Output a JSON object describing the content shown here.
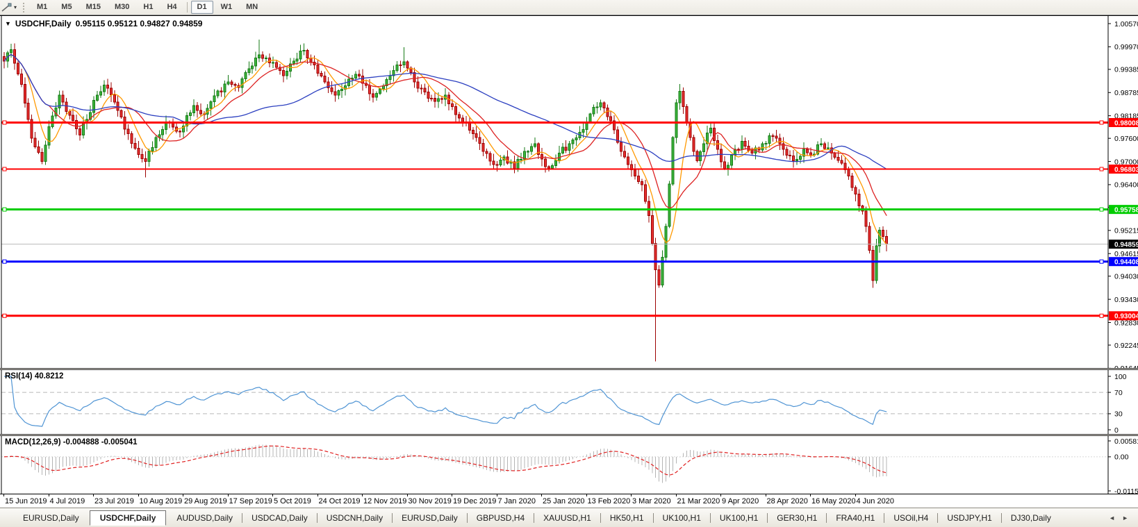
{
  "toolbar": {
    "tool_icon": "draw-line-tool",
    "dropdown_caret": "▾",
    "timeframes": [
      "M1",
      "M5",
      "M15",
      "M30",
      "H1",
      "H4",
      "D1",
      "W1",
      "MN"
    ],
    "active_timeframe": "D1"
  },
  "chart_header": {
    "collapse_icon": "▼",
    "symbol": "USDCHF,Daily",
    "ohlc": "0.95115 0.95121 0.94827 0.94859"
  },
  "price_axis": {
    "ticks": [
      "1.00570",
      "0.99970",
      "0.99385",
      "0.98785",
      "0.98185",
      "0.97600",
      "0.97000",
      "0.96400",
      "0.95815",
      "0.95215",
      "0.94615",
      "0.94030",
      "0.93430",
      "0.92830",
      "0.92245",
      "0.91645"
    ]
  },
  "hlines": [
    {
      "price": 0.98008,
      "label": "0.98008",
      "color": "#ff0000",
      "thickness": 3
    },
    {
      "price": 0.96803,
      "label": "0.96803",
      "color": "#ff0000",
      "thickness": 2
    },
    {
      "price": 0.95758,
      "label": "0.95758",
      "color": "#00cc00",
      "thickness": 3
    },
    {
      "price": 0.94408,
      "label": "0.94408",
      "color": "#0000ff",
      "thickness": 3
    },
    {
      "price": 0.93004,
      "label": "0.93004",
      "color": "#ff0000",
      "thickness": 3
    }
  ],
  "current_price": {
    "price": 0.94859,
    "label": "0.94859",
    "line_color": "#b8b8b8",
    "tag_bg": "#000000"
  },
  "colors": {
    "bull_fill": "#3db53d",
    "bull_border": "#157a15",
    "bear_fill": "#e63030",
    "bear_border": "#9c0000",
    "ma_fast": "#ff9900",
    "ma_mid": "#dd2222",
    "ma_slow": "#2b3fc0",
    "rsi_line": "#4f94d4",
    "rsi_level": "#b8b8b8",
    "macd_hist": "#b4b4b4",
    "macd_signal": "#e02020"
  },
  "chart_data": {
    "type": "candlestick",
    "symbol": "USDCHF",
    "timeframe": "Daily",
    "x_ticks": [
      "15 Jun 2019",
      "4 Jul 2019",
      "23 Jul 2019",
      "10 Aug 2019",
      "29 Aug 2019",
      "17 Sep 2019",
      "5 Oct 2019",
      "24 Oct 2019",
      "12 Nov 2019",
      "30 Nov 2019",
      "19 Dec 2019",
      "7 Jan 2020",
      "25 Jan 2020",
      "13 Feb 2020",
      "3 Mar 2020",
      "21 Mar 2020",
      "9 Apr 2020",
      "28 Apr 2020",
      "16 May 2020",
      "4 Jun 2020"
    ],
    "days_per_tick": 13,
    "num_candles": 257,
    "y_axis_top": 1.00768,
    "y_axis_bottom": 0.91634,
    "close_anchors": [
      [
        0,
        0.996
      ],
      [
        2,
        0.999
      ],
      [
        5,
        0.99
      ],
      [
        8,
        0.976
      ],
      [
        11,
        0.97
      ],
      [
        13,
        0.979
      ],
      [
        16,
        0.9872
      ],
      [
        19,
        0.982
      ],
      [
        22,
        0.9768
      ],
      [
        26,
        0.9858
      ],
      [
        29,
        0.9898
      ],
      [
        33,
        0.9832
      ],
      [
        36,
        0.9772
      ],
      [
        39,
        0.9718
      ],
      [
        41,
        0.97
      ],
      [
        44,
        0.9762
      ],
      [
        47,
        0.9802
      ],
      [
        50,
        0.9778
      ],
      [
        52,
        0.9792
      ],
      [
        55,
        0.9845
      ],
      [
        58,
        0.9822
      ],
      [
        61,
        0.987
      ],
      [
        65,
        0.9906
      ],
      [
        68,
        0.9892
      ],
      [
        71,
        0.994
      ],
      [
        74,
        0.9976
      ],
      [
        78,
        0.9956
      ],
      [
        81,
        0.9922
      ],
      [
        84,
        0.996
      ],
      [
        87,
        0.9988
      ],
      [
        90,
        0.995
      ],
      [
        93,
        0.9906
      ],
      [
        96,
        0.9872
      ],
      [
        99,
        0.9896
      ],
      [
        102,
        0.9926
      ],
      [
        104,
        0.9902
      ],
      [
        107,
        0.9866
      ],
      [
        110,
        0.9896
      ],
      [
        113,
        0.9936
      ],
      [
        116,
        0.9958
      ],
      [
        119,
        0.9906
      ],
      [
        122,
        0.988
      ],
      [
        125,
        0.9856
      ],
      [
        128,
        0.9872
      ],
      [
        130,
        0.9842
      ],
      [
        133,
        0.9802
      ],
      [
        136,
        0.9772
      ],
      [
        139,
        0.9726
      ],
      [
        142,
        0.9692
      ],
      [
        145,
        0.9712
      ],
      [
        148,
        0.9682
      ],
      [
        151,
        0.9726
      ],
      [
        154,
        0.9746
      ],
      [
        156,
        0.9706
      ],
      [
        158,
        0.9682
      ],
      [
        161,
        0.9722
      ],
      [
        164,
        0.9746
      ],
      [
        167,
        0.9776
      ],
      [
        169,
        0.9802
      ],
      [
        171,
        0.984
      ],
      [
        173,
        0.9852
      ],
      [
        175,
        0.9816
      ],
      [
        177,
        0.9782
      ],
      [
        179,
        0.9726
      ],
      [
        181,
        0.9692
      ],
      [
        183,
        0.9662
      ],
      [
        185,
        0.964
      ],
      [
        187,
        0.956
      ],
      [
        189,
        0.942
      ],
      [
        190,
        0.938
      ],
      [
        191,
        0.9452
      ],
      [
        192,
        0.9532
      ],
      [
        193,
        0.9642
      ],
      [
        194,
        0.9762
      ],
      [
        195,
        0.9852
      ],
      [
        196,
        0.9882
      ],
      [
        197,
        0.9842
      ],
      [
        199,
        0.9762
      ],
      [
        201,
        0.9702
      ],
      [
        203,
        0.9746
      ],
      [
        205,
        0.9786
      ],
      [
        207,
        0.9732
      ],
      [
        209,
        0.9682
      ],
      [
        211,
        0.9716
      ],
      [
        214,
        0.9752
      ],
      [
        217,
        0.9722
      ],
      [
        220,
        0.9746
      ],
      [
        223,
        0.9766
      ],
      [
        226,
        0.9732
      ],
      [
        229,
        0.9702
      ],
      [
        232,
        0.9732
      ],
      [
        234,
        0.9716
      ],
      [
        237,
        0.9746
      ],
      [
        240,
        0.9722
      ],
      [
        243,
        0.9696
      ],
      [
        245,
        0.9662
      ],
      [
        247,
        0.9616
      ],
      [
        249,
        0.9572
      ],
      [
        250,
        0.9532
      ],
      [
        251,
        0.947
      ],
      [
        252,
        0.9392
      ],
      [
        253,
        0.9482
      ],
      [
        254,
        0.9522
      ],
      [
        255,
        0.9506
      ],
      [
        256,
        0.94859
      ]
    ],
    "wick_overrides": [
      [
        2,
        "high",
        1.0005
      ],
      [
        11,
        "low",
        0.9693
      ],
      [
        41,
        "low",
        0.9659
      ],
      [
        74,
        "high",
        1.0016
      ],
      [
        116,
        "high",
        0.9996
      ],
      [
        189,
        "low",
        0.9182
      ],
      [
        196,
        "high",
        0.9901
      ],
      [
        252,
        "low",
        0.9373
      ]
    ],
    "moving_averages": [
      {
        "name": "sma-fast",
        "period": 7,
        "color": "#ff9900"
      },
      {
        "name": "sma-mid",
        "period": 14,
        "color": "#dd2222"
      },
      {
        "name": "sma-slow",
        "period": 50,
        "color": "#2b3fc0"
      }
    ],
    "rsi": {
      "label": "RSI(14) 40.8212",
      "period": 14,
      "value": "40.8212",
      "axis_ticks": [
        "100",
        "70",
        "30",
        "0"
      ],
      "levels": [
        70,
        30
      ]
    },
    "macd": {
      "label": "MACD(12,26,9) -0.004888 -0.005041",
      "fast": 12,
      "slow": 26,
      "signal": 9,
      "values": [
        "-0.004888",
        "-0.005041"
      ],
      "axis_ticks": [
        "0.005818",
        "0.00",
        "-0.011514"
      ],
      "axis_top": 0.00674,
      "axis_bottom": -0.01197
    }
  },
  "date_axis_labels": [
    "15 Jun 2019",
    "4 Jul 2019",
    "23 Jul 2019",
    "10 Aug 2019",
    "29 Aug 2019",
    "17 Sep 2019",
    "5 Oct 2019",
    "24 Oct 2019",
    "12 Nov 2019",
    "30 Nov 2019",
    "19 Dec 2019",
    "7 Jan 2020",
    "25 Jan 2020",
    "13 Feb 2020",
    "3 Mar 2020",
    "21 Mar 2020",
    "9 Apr 2020",
    "28 Apr 2020",
    "16 May 2020",
    "4 Jun 2020"
  ],
  "tab_bar": {
    "tabs": [
      {
        "label": "EURUSD,Daily",
        "active": false
      },
      {
        "label": "USDCHF,Daily",
        "active": true
      },
      {
        "label": "AUDUSD,Daily",
        "active": false
      },
      {
        "label": "USDCAD,Daily",
        "active": false
      },
      {
        "label": "USDCNH,Daily",
        "active": false
      },
      {
        "label": "EURUSD,Daily",
        "active": false
      },
      {
        "label": "GBPUSD,H4",
        "active": false
      },
      {
        "label": "XAUUSD,H1",
        "active": false
      },
      {
        "label": "HK50,H1",
        "active": false
      },
      {
        "label": "UK100,H1",
        "active": false
      },
      {
        "label": "UK100,H1",
        "active": false
      },
      {
        "label": "GER30,H1",
        "active": false
      },
      {
        "label": "FRA40,H1",
        "active": false
      },
      {
        "label": "USOil,H4",
        "active": false
      },
      {
        "label": "USDJPY,H1",
        "active": false
      },
      {
        "label": "DJ30,Daily",
        "active": false
      }
    ],
    "scroll_left_icon": "◄",
    "scroll_right_icon": "►"
  }
}
